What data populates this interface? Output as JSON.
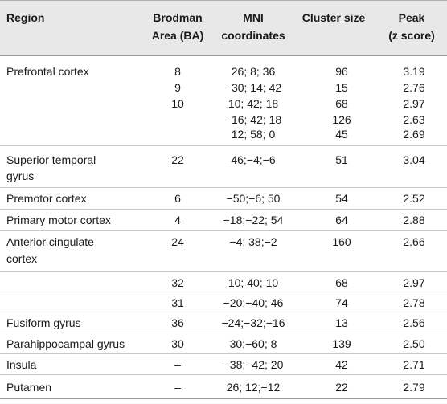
{
  "headers": {
    "region": "Region",
    "ba_1": "Brodman",
    "ba_2": "Area (BA)",
    "mni_1": "MNI",
    "mni_2": "coordinates",
    "cluster": "Cluster size",
    "peak_1": "Peak",
    "peak_2": "(z score)"
  },
  "rows": [
    {
      "region": "Prefrontal cortex",
      "ba": "8",
      "mni": "26; 8; 36",
      "cluster": "96",
      "peak": "3.19"
    },
    {
      "region": "",
      "ba": "9",
      "mni": "−30; 14; 42",
      "cluster": "15",
      "peak": "2.76"
    },
    {
      "region": "",
      "ba": "10",
      "mni": "10; 42; 18",
      "cluster": "68",
      "peak": "2.97"
    },
    {
      "region": "",
      "ba": "",
      "mni": "−16; 42; 18",
      "cluster": "126",
      "peak": "2.63"
    },
    {
      "region": "",
      "ba": "",
      "mni": "12; 58; 0",
      "cluster": "45",
      "peak": "2.69"
    },
    {
      "region": "Superior temporal",
      "region_2": "gyrus",
      "ba": "22",
      "mni": "46;−4;−6",
      "cluster": "51",
      "peak": "3.04"
    },
    {
      "region": "Premotor cortex",
      "ba": "6",
      "mni": "−50;−6; 50",
      "cluster": "54",
      "peak": "2.52"
    },
    {
      "region": "Primary motor cortex",
      "ba": "4",
      "mni": "−18;−22; 54",
      "cluster": "64",
      "peak": "2.88"
    },
    {
      "region": "Anterior cingulate",
      "region_2": "cortex",
      "ba": "24",
      "mni": "−4; 38;−2",
      "cluster": "160",
      "peak": "2.66"
    },
    {
      "region": "",
      "ba": "32",
      "mni": "10; 40; 10",
      "cluster": "68",
      "peak": "2.97"
    },
    {
      "region": "",
      "ba": "31",
      "mni": "−20;−40; 46",
      "cluster": "74",
      "peak": "2.78"
    },
    {
      "region": "Fusiform gyrus",
      "ba": "36",
      "mni": "−24;−32;−16",
      "cluster": "13",
      "peak": "2.56"
    },
    {
      "region": "Parahippocampal gyrus",
      "ba": "30",
      "mni": "30;−60; 8",
      "cluster": "139",
      "peak": "2.50"
    },
    {
      "region": "Insula",
      "ba": "–",
      "mni": "−38;−42; 20",
      "cluster": "42",
      "peak": "2.71"
    },
    {
      "region": "Putamen",
      "ba": "–",
      "mni": "26; 12;−12",
      "cluster": "22",
      "peak": "2.79"
    }
  ]
}
